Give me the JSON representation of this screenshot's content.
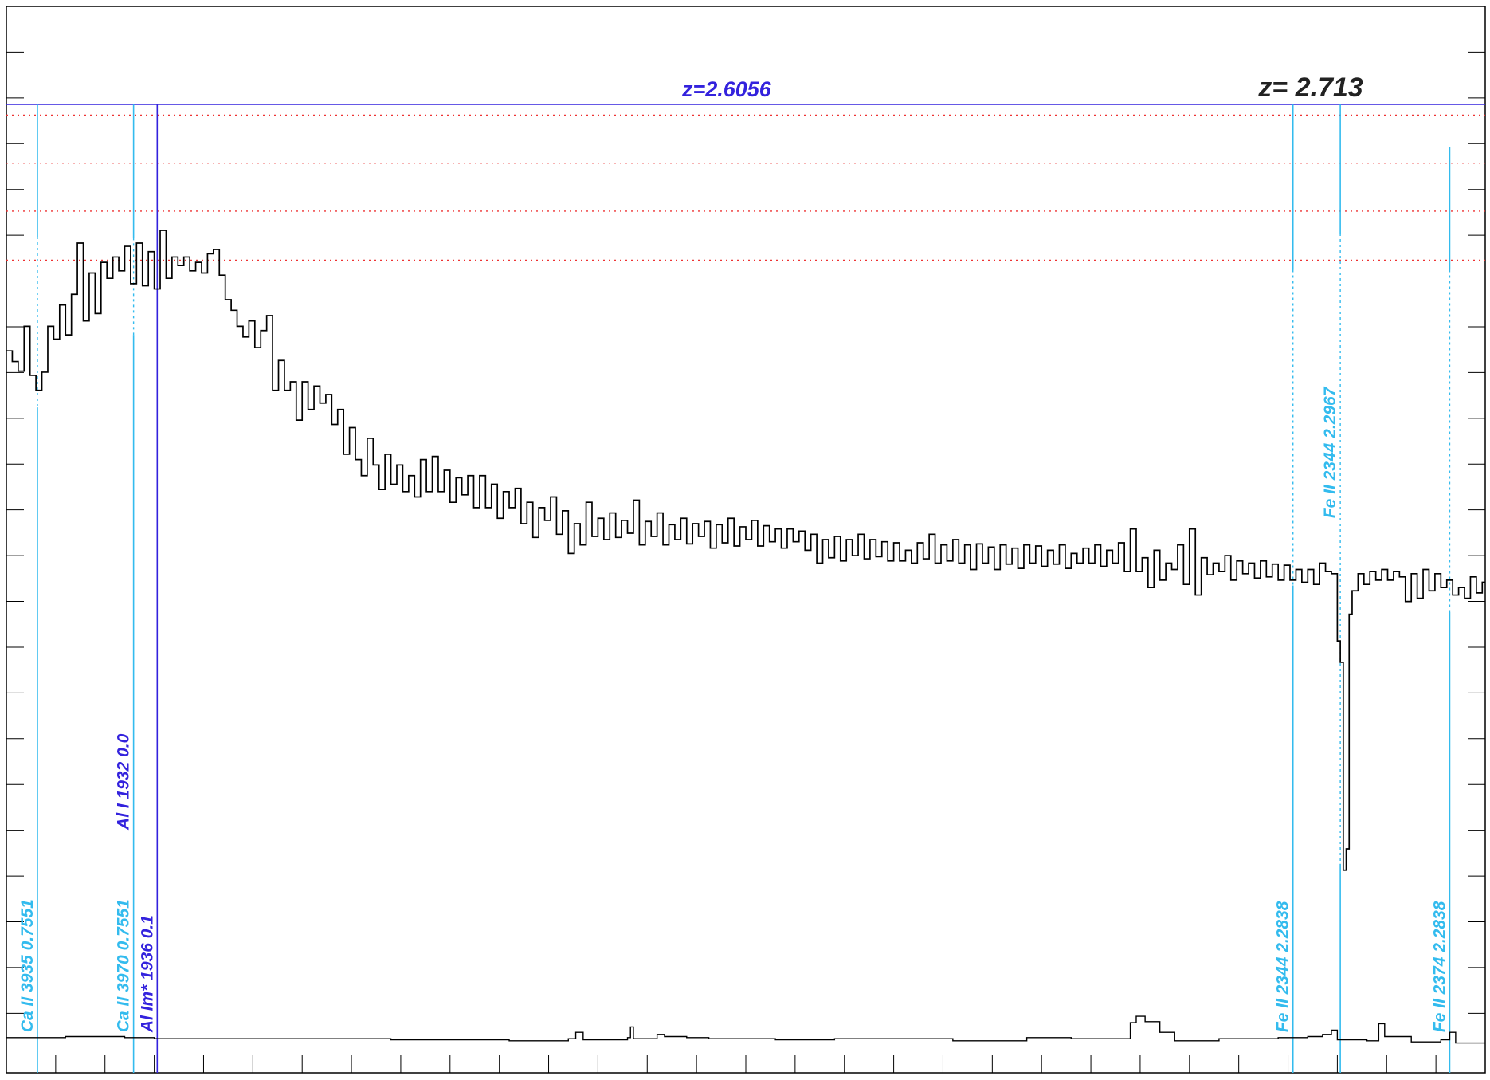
{
  "chart_data": {
    "type": "line",
    "title": "",
    "xlabel": "",
    "ylabel": "",
    "xlim": [
      0,
      1
    ],
    "ylim": [
      0,
      1
    ],
    "grid": false,
    "colors": {
      "spectrum": "#000000",
      "cyan_lines": "#33bbee",
      "blue_lines": "#3322dd",
      "reference_dotted": "#ee3333",
      "z_top_label": "#3322dd",
      "z_right_label": "#222222"
    },
    "redshift_labels": [
      {
        "text": "z=2.6056",
        "color_key": "z_top_label",
        "x": 0.487
      },
      {
        "text": "z= 2.713",
        "color_key": "z_right_label",
        "x": 0.882
      }
    ],
    "redshift_bar_y": 0.908,
    "reference_levels": [
      0.898,
      0.853,
      0.808,
      0.762
    ],
    "line_markers": [
      {
        "label": "Ca II 3935 0.7551",
        "x": 0.021,
        "color_key": "cyan_lines",
        "top": 0.908,
        "gap": [
          0.784,
          0.624
        ],
        "label_y": 0.038
      },
      {
        "label": "Ca II 3970 0.7551",
        "x": 0.086,
        "color_key": "cyan_lines",
        "top": 0.908,
        "gap": [
          0.783,
          0.692
        ],
        "label_y": 0.038
      },
      {
        "label": "Al Im* 1936 0.1",
        "x": 0.102,
        "color_key": "blue_lines",
        "top": 0.908,
        "gap": null,
        "label_y": 0.038
      },
      {
        "label": "Al I 1932 0.0",
        "x": 0.086,
        "color_key": "blue_lines",
        "top": null,
        "gap": null,
        "label_y": 0.228
      },
      {
        "label": "Fe II 2344 2.2838",
        "x": 0.87,
        "color_key": "cyan_lines",
        "top": 0.908,
        "gap": [
          0.753,
          0.457
        ],
        "label_y": 0.038
      },
      {
        "label": "Fe II 2344 2.2967",
        "x": 0.902,
        "color_key": "cyan_lines",
        "top": 0.908,
        "gap": [
          0.787,
          0.196
        ],
        "label_y": 0.52
      },
      {
        "label": "Fe II 2374 2.2838",
        "x": 0.976,
        "color_key": "cyan_lines",
        "top": 0.868,
        "gap": [
          0.753,
          0.432
        ],
        "label_y": 0.038
      }
    ],
    "flux": [
      [
        0.0,
        0.677
      ],
      [
        0.004,
        0.667
      ],
      [
        0.008,
        0.658
      ],
      [
        0.012,
        0.7
      ],
      [
        0.016,
        0.654
      ],
      [
        0.02,
        0.64
      ],
      [
        0.024,
        0.657
      ],
      [
        0.028,
        0.7
      ],
      [
        0.032,
        0.688
      ],
      [
        0.036,
        0.72
      ],
      [
        0.04,
        0.692
      ],
      [
        0.044,
        0.73
      ],
      [
        0.048,
        0.778
      ],
      [
        0.052,
        0.705
      ],
      [
        0.056,
        0.75
      ],
      [
        0.06,
        0.712
      ],
      [
        0.064,
        0.76
      ],
      [
        0.068,
        0.745
      ],
      [
        0.072,
        0.765
      ],
      [
        0.076,
        0.752
      ],
      [
        0.08,
        0.775
      ],
      [
        0.084,
        0.74
      ],
      [
        0.088,
        0.778
      ],
      [
        0.092,
        0.738
      ],
      [
        0.096,
        0.77
      ],
      [
        0.1,
        0.735
      ],
      [
        0.104,
        0.79
      ],
      [
        0.108,
        0.745
      ],
      [
        0.112,
        0.765
      ],
      [
        0.116,
        0.757
      ],
      [
        0.12,
        0.765
      ],
      [
        0.124,
        0.752
      ],
      [
        0.128,
        0.76
      ],
      [
        0.132,
        0.75
      ],
      [
        0.136,
        0.768
      ],
      [
        0.14,
        0.772
      ],
      [
        0.144,
        0.748
      ],
      [
        0.148,
        0.725
      ],
      [
        0.152,
        0.715
      ],
      [
        0.156,
        0.7
      ],
      [
        0.16,
        0.69
      ],
      [
        0.164,
        0.705
      ],
      [
        0.168,
        0.68
      ],
      [
        0.172,
        0.696
      ],
      [
        0.176,
        0.71
      ],
      [
        0.18,
        0.64
      ],
      [
        0.184,
        0.668
      ],
      [
        0.188,
        0.64
      ],
      [
        0.192,
        0.648
      ],
      [
        0.196,
        0.612
      ],
      [
        0.2,
        0.648
      ],
      [
        0.204,
        0.622
      ],
      [
        0.208,
        0.644
      ],
      [
        0.212,
        0.628
      ],
      [
        0.216,
        0.636
      ],
      [
        0.22,
        0.608
      ],
      [
        0.224,
        0.622
      ],
      [
        0.228,
        0.58
      ],
      [
        0.232,
        0.605
      ],
      [
        0.236,
        0.575
      ],
      [
        0.24,
        0.56
      ],
      [
        0.244,
        0.595
      ],
      [
        0.248,
        0.57
      ],
      [
        0.252,
        0.547
      ],
      [
        0.256,
        0.58
      ],
      [
        0.26,
        0.552
      ],
      [
        0.264,
        0.57
      ],
      [
        0.268,
        0.545
      ],
      [
        0.272,
        0.56
      ],
      [
        0.276,
        0.54
      ],
      [
        0.28,
        0.575
      ],
      [
        0.284,
        0.545
      ],
      [
        0.288,
        0.578
      ],
      [
        0.292,
        0.545
      ],
      [
        0.296,
        0.565
      ],
      [
        0.3,
        0.535
      ],
      [
        0.304,
        0.558
      ],
      [
        0.308,
        0.542
      ],
      [
        0.312,
        0.56
      ],
      [
        0.316,
        0.53
      ],
      [
        0.32,
        0.56
      ],
      [
        0.324,
        0.53
      ],
      [
        0.328,
        0.552
      ],
      [
        0.332,
        0.52
      ],
      [
        0.336,
        0.545
      ],
      [
        0.34,
        0.53
      ],
      [
        0.344,
        0.548
      ],
      [
        0.348,
        0.515
      ],
      [
        0.352,
        0.535
      ],
      [
        0.356,
        0.502
      ],
      [
        0.36,
        0.53
      ],
      [
        0.364,
        0.518
      ],
      [
        0.368,
        0.54
      ],
      [
        0.372,
        0.505
      ],
      [
        0.376,
        0.527
      ],
      [
        0.38,
        0.487
      ],
      [
        0.384,
        0.515
      ],
      [
        0.388,
        0.495
      ],
      [
        0.392,
        0.535
      ],
      [
        0.396,
        0.503
      ],
      [
        0.4,
        0.52
      ],
      [
        0.404,
        0.5
      ],
      [
        0.408,
        0.525
      ],
      [
        0.412,
        0.502
      ],
      [
        0.416,
        0.518
      ],
      [
        0.42,
        0.506
      ],
      [
        0.424,
        0.537
      ],
      [
        0.428,
        0.495
      ],
      [
        0.432,
        0.517
      ],
      [
        0.436,
        0.503
      ],
      [
        0.44,
        0.525
      ],
      [
        0.444,
        0.495
      ],
      [
        0.448,
        0.514
      ],
      [
        0.452,
        0.5
      ],
      [
        0.456,
        0.52
      ],
      [
        0.46,
        0.496
      ],
      [
        0.464,
        0.515
      ],
      [
        0.468,
        0.503
      ],
      [
        0.472,
        0.517
      ],
      [
        0.476,
        0.492
      ],
      [
        0.48,
        0.514
      ],
      [
        0.484,
        0.497
      ],
      [
        0.488,
        0.52
      ],
      [
        0.492,
        0.494
      ],
      [
        0.496,
        0.512
      ],
      [
        0.5,
        0.5
      ],
      [
        0.504,
        0.518
      ],
      [
        0.508,
        0.494
      ],
      [
        0.512,
        0.513
      ],
      [
        0.516,
        0.498
      ],
      [
        0.52,
        0.51
      ],
      [
        0.524,
        0.492
      ],
      [
        0.528,
        0.51
      ],
      [
        0.532,
        0.498
      ],
      [
        0.536,
        0.508
      ],
      [
        0.54,
        0.49
      ],
      [
        0.544,
        0.505
      ],
      [
        0.548,
        0.478
      ],
      [
        0.552,
        0.5
      ],
      [
        0.556,
        0.483
      ],
      [
        0.56,
        0.503
      ],
      [
        0.564,
        0.48
      ],
      [
        0.568,
        0.5
      ],
      [
        0.572,
        0.485
      ],
      [
        0.576,
        0.505
      ],
      [
        0.58,
        0.482
      ],
      [
        0.584,
        0.5
      ],
      [
        0.588,
        0.484
      ],
      [
        0.592,
        0.498
      ],
      [
        0.596,
        0.48
      ],
      [
        0.6,
        0.497
      ],
      [
        0.604,
        0.48
      ],
      [
        0.608,
        0.49
      ],
      [
        0.612,
        0.478
      ],
      [
        0.616,
        0.497
      ],
      [
        0.62,
        0.482
      ],
      [
        0.624,
        0.505
      ],
      [
        0.628,
        0.478
      ],
      [
        0.632,
        0.495
      ],
      [
        0.636,
        0.48
      ],
      [
        0.64,
        0.5
      ],
      [
        0.644,
        0.478
      ],
      [
        0.648,
        0.495
      ],
      [
        0.652,
        0.472
      ],
      [
        0.656,
        0.496
      ],
      [
        0.66,
        0.478
      ],
      [
        0.664,
        0.493
      ],
      [
        0.668,
        0.472
      ],
      [
        0.672,
        0.495
      ],
      [
        0.676,
        0.477
      ],
      [
        0.68,
        0.492
      ],
      [
        0.684,
        0.473
      ],
      [
        0.688,
        0.495
      ],
      [
        0.692,
        0.478
      ],
      [
        0.696,
        0.494
      ],
      [
        0.7,
        0.475
      ],
      [
        0.704,
        0.49
      ],
      [
        0.708,
        0.477
      ],
      [
        0.712,
        0.495
      ],
      [
        0.716,
        0.473
      ],
      [
        0.72,
        0.487
      ],
      [
        0.724,
        0.478
      ],
      [
        0.728,
        0.492
      ],
      [
        0.732,
        0.478
      ],
      [
        0.736,
        0.495
      ],
      [
        0.74,
        0.475
      ],
      [
        0.744,
        0.49
      ],
      [
        0.748,
        0.478
      ],
      [
        0.752,
        0.497
      ],
      [
        0.756,
        0.47
      ],
      [
        0.76,
        0.51
      ],
      [
        0.764,
        0.47
      ],
      [
        0.768,
        0.483
      ],
      [
        0.772,
        0.455
      ],
      [
        0.776,
        0.49
      ],
      [
        0.78,
        0.462
      ],
      [
        0.784,
        0.478
      ],
      [
        0.788,
        0.472
      ],
      [
        0.792,
        0.495
      ],
      [
        0.796,
        0.458
      ],
      [
        0.8,
        0.51
      ],
      [
        0.804,
        0.448
      ],
      [
        0.808,
        0.483
      ],
      [
        0.812,
        0.467
      ],
      [
        0.816,
        0.478
      ],
      [
        0.82,
        0.47
      ],
      [
        0.824,
        0.485
      ],
      [
        0.828,
        0.462
      ],
      [
        0.832,
        0.48
      ],
      [
        0.836,
        0.468
      ],
      [
        0.84,
        0.478
      ],
      [
        0.844,
        0.464
      ],
      [
        0.848,
        0.48
      ],
      [
        0.852,
        0.465
      ],
      [
        0.856,
        0.477
      ],
      [
        0.86,
        0.462
      ],
      [
        0.864,
        0.476
      ],
      [
        0.868,
        0.462
      ],
      [
        0.872,
        0.472
      ],
      [
        0.876,
        0.46
      ],
      [
        0.88,
        0.472
      ],
      [
        0.884,
        0.458
      ],
      [
        0.888,
        0.478
      ],
      [
        0.892,
        0.47
      ],
      [
        0.896,
        0.468
      ],
      [
        0.9,
        0.405
      ],
      [
        0.902,
        0.385
      ],
      [
        0.904,
        0.19
      ],
      [
        0.906,
        0.21
      ],
      [
        0.908,
        0.43
      ],
      [
        0.91,
        0.452
      ],
      [
        0.914,
        0.468
      ],
      [
        0.918,
        0.458
      ],
      [
        0.922,
        0.47
      ],
      [
        0.926,
        0.462
      ],
      [
        0.93,
        0.472
      ],
      [
        0.934,
        0.462
      ],
      [
        0.938,
        0.47
      ],
      [
        0.942,
        0.465
      ],
      [
        0.946,
        0.442
      ],
      [
        0.95,
        0.468
      ],
      [
        0.954,
        0.445
      ],
      [
        0.958,
        0.472
      ],
      [
        0.962,
        0.452
      ],
      [
        0.966,
        0.468
      ],
      [
        0.97,
        0.455
      ],
      [
        0.974,
        0.462
      ],
      [
        0.978,
        0.448
      ],
      [
        0.982,
        0.455
      ],
      [
        0.986,
        0.445
      ],
      [
        0.99,
        0.465
      ],
      [
        0.994,
        0.45
      ],
      [
        0.998,
        0.46
      ]
    ],
    "error": [
      [
        0.0,
        0.033
      ],
      [
        0.04,
        0.034
      ],
      [
        0.08,
        0.033
      ],
      [
        0.1,
        0.032
      ],
      [
        0.16,
        0.032
      ],
      [
        0.26,
        0.031
      ],
      [
        0.34,
        0.03
      ],
      [
        0.38,
        0.032
      ],
      [
        0.385,
        0.038
      ],
      [
        0.39,
        0.031
      ],
      [
        0.42,
        0.033
      ],
      [
        0.422,
        0.043
      ],
      [
        0.424,
        0.032
      ],
      [
        0.44,
        0.036
      ],
      [
        0.445,
        0.034
      ],
      [
        0.46,
        0.033
      ],
      [
        0.475,
        0.032
      ],
      [
        0.52,
        0.031
      ],
      [
        0.56,
        0.032
      ],
      [
        0.64,
        0.03
      ],
      [
        0.69,
        0.033
      ],
      [
        0.72,
        0.032
      ],
      [
        0.76,
        0.047
      ],
      [
        0.764,
        0.053
      ],
      [
        0.77,
        0.048
      ],
      [
        0.78,
        0.038
      ],
      [
        0.79,
        0.03
      ],
      [
        0.82,
        0.032
      ],
      [
        0.86,
        0.033
      ],
      [
        0.88,
        0.034
      ],
      [
        0.89,
        0.036
      ],
      [
        0.896,
        0.04
      ],
      [
        0.9,
        0.031
      ],
      [
        0.92,
        0.03
      ],
      [
        0.928,
        0.046
      ],
      [
        0.932,
        0.034
      ],
      [
        0.95,
        0.029
      ],
      [
        0.97,
        0.031
      ],
      [
        0.976,
        0.038
      ],
      [
        0.98,
        0.028
      ],
      [
        0.998,
        0.028
      ]
    ]
  }
}
